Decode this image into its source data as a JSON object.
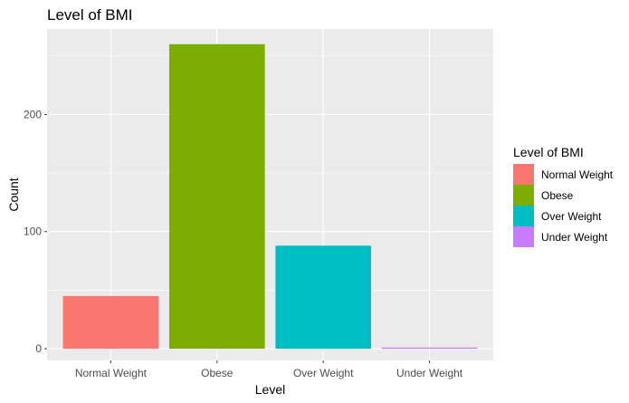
{
  "chart_data": {
    "type": "bar",
    "title": "Level of BMI",
    "xlabel": "Level",
    "ylabel": "Count",
    "categories": [
      "Normal Weight",
      "Obese",
      "Over Weight",
      "Under Weight"
    ],
    "values": [
      45,
      260,
      88,
      1
    ],
    "colors": [
      "#F8766D",
      "#7CAE00",
      "#00BFC4",
      "#C77CFF"
    ],
    "ylim": [
      -10,
      273
    ],
    "yticks": [
      0,
      100,
      200
    ],
    "ytick_labels": [
      "0",
      "100",
      "200"
    ],
    "grid": true,
    "background": "#EBEBEB",
    "legend": {
      "title": "Level of BMI",
      "position": "right",
      "entries": [
        "Normal Weight",
        "Obese",
        "Over Weight",
        "Under Weight"
      ]
    }
  }
}
